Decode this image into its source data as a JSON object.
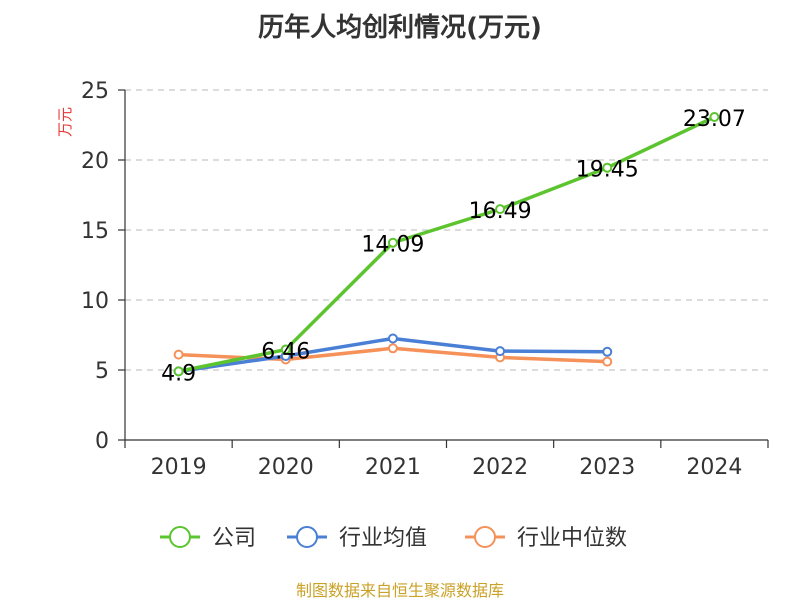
{
  "chart_data": {
    "type": "line",
    "title": "历年人均创利情况(万元)",
    "ylabel": "万元",
    "xlabel": "",
    "ylim": [
      0,
      25
    ],
    "yticks": [
      0,
      5,
      10,
      15,
      20,
      25
    ],
    "grid": true,
    "categories": [
      "2019",
      "2020",
      "2021",
      "2022",
      "2023",
      "2024"
    ],
    "series": [
      {
        "name": "公司",
        "color": "#5cc42e",
        "values": [
          4.9,
          6.46,
          14.09,
          16.49,
          19.45,
          23.07
        ],
        "labels": [
          "4.9",
          "6.46",
          "14.09",
          "16.49",
          "19.45",
          "23.07"
        ]
      },
      {
        "name": "行业均值",
        "color": "#4a7fd6",
        "values": [
          4.9,
          6.0,
          7.25,
          6.35,
          6.3,
          null
        ]
      },
      {
        "name": "行业中位数",
        "color": "#f59159",
        "values": [
          6.1,
          5.75,
          6.55,
          5.9,
          5.6,
          null
        ]
      }
    ],
    "legend_position": "bottom",
    "source": "制图数据来自恒生聚源数据库"
  }
}
